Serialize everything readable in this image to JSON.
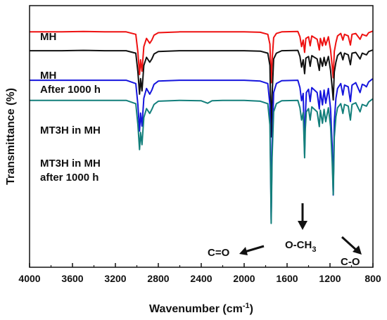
{
  "chart_data": {
    "type": "line",
    "xlabel": "Wavenumber (cm",
    "xlabel_sup": "-1",
    "xlabel_close": ")",
    "ylabel": "Transmittance (%)",
    "xlim": [
      4000,
      800
    ],
    "x_reversed": true,
    "grid": false,
    "y_ticks_shown": false,
    "x_ticks": [
      "4000",
      "3600",
      "3200",
      "2800",
      "2400",
      "2000",
      "1600",
      "1200",
      "800"
    ],
    "series": [
      {
        "name": "MH",
        "color": "#ee1111",
        "baseline": 9.2,
        "points": [
          [
            4000,
            0
          ],
          [
            3700,
            0
          ],
          [
            3500,
            0.05
          ],
          [
            3300,
            0
          ],
          [
            3100,
            0
          ],
          [
            3010,
            -0.3
          ],
          [
            2990,
            -2.5
          ],
          [
            2975,
            -5.2
          ],
          [
            2965,
            -3.4
          ],
          [
            2952,
            -4.8
          ],
          [
            2935,
            -1.8
          ],
          [
            2910,
            -0.8
          ],
          [
            2880,
            -1.4
          ],
          [
            2860,
            -1.0
          ],
          [
            2840,
            -0.4
          ],
          [
            2800,
            -0.1
          ],
          [
            2600,
            0
          ],
          [
            2400,
            0
          ],
          [
            2200,
            0
          ],
          [
            2000,
            0
          ],
          [
            1850,
            -0.05
          ],
          [
            1780,
            -0.3
          ],
          [
            1760,
            -1.5
          ],
          [
            1748,
            -6.2
          ],
          [
            1740,
            -3.5
          ],
          [
            1725,
            -0.7
          ],
          [
            1700,
            -0.2
          ],
          [
            1650,
            0
          ],
          [
            1500,
            0.05
          ],
          [
            1480,
            -0.6
          ],
          [
            1465,
            -1.8
          ],
          [
            1450,
            -1.0
          ],
          [
            1437,
            -2.5
          ],
          [
            1425,
            -0.8
          ],
          [
            1400,
            -0.6
          ],
          [
            1385,
            -1.7
          ],
          [
            1370,
            -0.5
          ],
          [
            1320,
            -0.9
          ],
          [
            1300,
            -2.2
          ],
          [
            1290,
            -0.8
          ],
          [
            1270,
            -1.7
          ],
          [
            1255,
            -0.7
          ],
          [
            1240,
            -1.6
          ],
          [
            1215,
            -0.6
          ],
          [
            1195,
            -2.2
          ],
          [
            1180,
            -4.2
          ],
          [
            1170,
            -5.6
          ],
          [
            1160,
            -2.4
          ],
          [
            1145,
            -1.3
          ],
          [
            1130,
            -0.5
          ],
          [
            1100,
            -0.2
          ],
          [
            1080,
            -1.0
          ],
          [
            1065,
            -0.3
          ],
          [
            1030,
            -0.5
          ],
          [
            1010,
            -1.6
          ],
          [
            995,
            -0.3
          ],
          [
            960,
            -0.2
          ],
          [
            920,
            -0.9
          ],
          [
            900,
            -0.3
          ],
          [
            880,
            -0.4
          ],
          [
            860,
            -0.5
          ],
          [
            840,
            -0.1
          ],
          [
            800,
            0.1
          ]
        ]
      },
      {
        "name": "MH After 1000 h",
        "color": "#111111",
        "baseline": 6.9,
        "points": [
          [
            4000,
            0
          ],
          [
            3700,
            0
          ],
          [
            3500,
            0.05
          ],
          [
            3300,
            0
          ],
          [
            3100,
            0
          ],
          [
            3010,
            -0.3
          ],
          [
            2990,
            -2.6
          ],
          [
            2975,
            -5.3
          ],
          [
            2965,
            -3.4
          ],
          [
            2952,
            -4.9
          ],
          [
            2935,
            -1.8
          ],
          [
            2910,
            -0.8
          ],
          [
            2880,
            -1.4
          ],
          [
            2860,
            -1.0
          ],
          [
            2840,
            -0.4
          ],
          [
            2800,
            -0.1
          ],
          [
            2600,
            0
          ],
          [
            2400,
            0
          ],
          [
            2200,
            0
          ],
          [
            2000,
            0
          ],
          [
            1850,
            -0.05
          ],
          [
            1780,
            -0.3
          ],
          [
            1760,
            -1.8
          ],
          [
            1748,
            -10.5
          ],
          [
            1740,
            -5.5
          ],
          [
            1725,
            -1.0
          ],
          [
            1700,
            -0.3
          ],
          [
            1650,
            0
          ],
          [
            1500,
            0.05
          ],
          [
            1480,
            -0.7
          ],
          [
            1465,
            -2.0
          ],
          [
            1450,
            -1.1
          ],
          [
            1437,
            -2.8
          ],
          [
            1425,
            -0.9
          ],
          [
            1400,
            -0.7
          ],
          [
            1385,
            -1.9
          ],
          [
            1370,
            -0.6
          ],
          [
            1320,
            -1.0
          ],
          [
            1300,
            -2.4
          ],
          [
            1290,
            -0.9
          ],
          [
            1270,
            -1.9
          ],
          [
            1255,
            -0.8
          ],
          [
            1240,
            -1.8
          ],
          [
            1215,
            -0.7
          ],
          [
            1195,
            -2.4
          ],
          [
            1180,
            -4.5
          ],
          [
            1170,
            -6.0
          ],
          [
            1160,
            -2.6
          ],
          [
            1145,
            -1.4
          ],
          [
            1130,
            -0.6
          ],
          [
            1100,
            -0.2
          ],
          [
            1080,
            -1.1
          ],
          [
            1065,
            -0.3
          ],
          [
            1030,
            -0.5
          ],
          [
            1010,
            -1.7
          ],
          [
            995,
            -0.3
          ],
          [
            960,
            -0.2
          ],
          [
            920,
            -1.0
          ],
          [
            900,
            -0.3
          ],
          [
            880,
            -0.4
          ],
          [
            860,
            -0.5
          ],
          [
            840,
            -0.1
          ],
          [
            800,
            0.1
          ]
        ]
      },
      {
        "name": "MT3H in MH",
        "color": "#1515dd",
        "baseline": 3.3,
        "points": [
          [
            4000,
            0
          ],
          [
            3700,
            0
          ],
          [
            3500,
            0
          ],
          [
            3300,
            0
          ],
          [
            3100,
            0
          ],
          [
            3010,
            -0.4
          ],
          [
            2990,
            -3.0
          ],
          [
            2975,
            -6.2
          ],
          [
            2965,
            -4.0
          ],
          [
            2952,
            -5.6
          ],
          [
            2935,
            -2.2
          ],
          [
            2910,
            -1.0
          ],
          [
            2880,
            -1.7
          ],
          [
            2860,
            -1.2
          ],
          [
            2840,
            -0.5
          ],
          [
            2800,
            -0.1
          ],
          [
            2600,
            0
          ],
          [
            2400,
            0
          ],
          [
            2200,
            0
          ],
          [
            2000,
            0
          ],
          [
            1850,
            -0.1
          ],
          [
            1780,
            -0.4
          ],
          [
            1760,
            -3.0
          ],
          [
            1748,
            -17.0
          ],
          [
            1740,
            -8.0
          ],
          [
            1725,
            -1.5
          ],
          [
            1700,
            -0.4
          ],
          [
            1650,
            -0.05
          ],
          [
            1500,
            0
          ],
          [
            1480,
            -0.9
          ],
          [
            1465,
            -2.5
          ],
          [
            1450,
            -1.6
          ],
          [
            1437,
            -9.0
          ],
          [
            1430,
            -4.5
          ],
          [
            1420,
            -1.5
          ],
          [
            1400,
            -1.1
          ],
          [
            1385,
            -2.6
          ],
          [
            1370,
            -0.9
          ],
          [
            1320,
            -1.5
          ],
          [
            1300,
            -3.5
          ],
          [
            1290,
            -1.3
          ],
          [
            1270,
            -3.0
          ],
          [
            1255,
            -1.2
          ],
          [
            1240,
            -2.8
          ],
          [
            1215,
            -1.0
          ],
          [
            1195,
            -3.5
          ],
          [
            1180,
            -8.0
          ],
          [
            1170,
            -14.0
          ],
          [
            1165,
            -10.0
          ],
          [
            1160,
            -5.0
          ],
          [
            1145,
            -2.2
          ],
          [
            1130,
            -1.0
          ],
          [
            1100,
            -0.4
          ],
          [
            1080,
            -1.8
          ],
          [
            1065,
            -0.6
          ],
          [
            1030,
            -0.8
          ],
          [
            1010,
            -2.6
          ],
          [
            995,
            -0.6
          ],
          [
            960,
            -0.3
          ],
          [
            920,
            -1.5
          ],
          [
            900,
            -0.5
          ],
          [
            880,
            -0.6
          ],
          [
            860,
            -0.8
          ],
          [
            840,
            -0.2
          ],
          [
            800,
            0.2
          ]
        ]
      },
      {
        "name": "MT3H in MH after 1000 h",
        "color": "#137f7b",
        "baseline": 0.85,
        "points": [
          [
            4000,
            0
          ],
          [
            3700,
            0
          ],
          [
            3500,
            0
          ],
          [
            3300,
            0
          ],
          [
            3100,
            0
          ],
          [
            3010,
            -0.4
          ],
          [
            2990,
            -3.0
          ],
          [
            2975,
            -6.0
          ],
          [
            2965,
            -3.9
          ],
          [
            2952,
            -5.4
          ],
          [
            2935,
            -2.1
          ],
          [
            2910,
            -1.0
          ],
          [
            2880,
            -1.6
          ],
          [
            2860,
            -1.1
          ],
          [
            2840,
            -0.5
          ],
          [
            2800,
            -0.1
          ],
          [
            2600,
            0
          ],
          [
            2400,
            -0.05
          ],
          [
            2340,
            -0.35
          ],
          [
            2300,
            -0.05
          ],
          [
            2200,
            0
          ],
          [
            2000,
            0
          ],
          [
            1850,
            -0.1
          ],
          [
            1780,
            -0.4
          ],
          [
            1760,
            -3.0
          ],
          [
            1748,
            -15.0
          ],
          [
            1740,
            -7.0
          ],
          [
            1725,
            -1.4
          ],
          [
            1700,
            -0.4
          ],
          [
            1650,
            -0.05
          ],
          [
            1500,
            0
          ],
          [
            1480,
            -0.9
          ],
          [
            1465,
            -2.4
          ],
          [
            1450,
            -1.5
          ],
          [
            1437,
            -7.0
          ],
          [
            1430,
            -3.5
          ],
          [
            1420,
            -1.4
          ],
          [
            1400,
            -1.0
          ],
          [
            1385,
            -2.4
          ],
          [
            1370,
            -0.8
          ],
          [
            1320,
            -1.4
          ],
          [
            1300,
            -3.2
          ],
          [
            1290,
            -1.2
          ],
          [
            1270,
            -2.8
          ],
          [
            1255,
            -1.1
          ],
          [
            1240,
            -2.6
          ],
          [
            1215,
            -0.9
          ],
          [
            1195,
            -3.2
          ],
          [
            1180,
            -7.5
          ],
          [
            1170,
            -11.5
          ],
          [
            1165,
            -8.5
          ],
          [
            1160,
            -4.5
          ],
          [
            1145,
            -2.0
          ],
          [
            1130,
            -0.9
          ],
          [
            1100,
            -0.4
          ],
          [
            1080,
            -1.6
          ],
          [
            1065,
            -0.5
          ],
          [
            1030,
            -0.7
          ],
          [
            1010,
            -2.4
          ],
          [
            995,
            -0.5
          ],
          [
            960,
            -0.3
          ],
          [
            920,
            -1.4
          ],
          [
            900,
            -0.5
          ],
          [
            880,
            -0.6
          ],
          [
            860,
            -0.7
          ],
          [
            840,
            -0.2
          ],
          [
            800,
            0.2
          ]
        ]
      }
    ],
    "labels": [
      {
        "lines": [
          "MH"
        ],
        "position": "top-left"
      },
      {
        "lines": [
          "MH",
          "After 1000 h"
        ],
        "position": "left"
      },
      {
        "lines": [
          "MT3H in MH"
        ],
        "position": "left"
      },
      {
        "lines": [
          "MT3H in MH",
          "after 1000 h"
        ],
        "position": "left"
      }
    ],
    "annotations": [
      {
        "text": "C=O",
        "x": 1748
      },
      {
        "text": "O-CH",
        "sub": "3",
        "x": 1437
      },
      {
        "text": "C-O",
        "x": 1170
      }
    ]
  }
}
